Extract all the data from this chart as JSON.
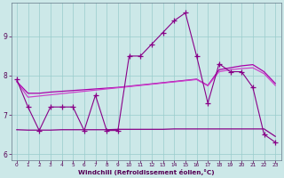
{
  "x": [
    0,
    1,
    2,
    3,
    4,
    5,
    6,
    7,
    8,
    9,
    10,
    11,
    12,
    13,
    14,
    15,
    16,
    17,
    18,
    19,
    20,
    21,
    22,
    23
  ],
  "y_raw": [
    7.9,
    7.2,
    6.6,
    7.2,
    7.2,
    7.2,
    6.6,
    7.5,
    6.6,
    6.6,
    8.5,
    8.5,
    8.8,
    9.1,
    9.4,
    9.6,
    8.5,
    7.3,
    8.3,
    8.1,
    8.1,
    7.7,
    6.5,
    6.3
  ],
  "y_smooth_upper": [
    7.85,
    7.55,
    7.55,
    7.58,
    7.6,
    7.62,
    7.64,
    7.66,
    7.68,
    7.7,
    7.73,
    7.76,
    7.79,
    7.82,
    7.85,
    7.88,
    7.91,
    7.75,
    8.15,
    8.2,
    8.25,
    8.28,
    8.1,
    7.8
  ],
  "y_smooth_mid": [
    7.85,
    7.45,
    7.48,
    7.51,
    7.54,
    7.57,
    7.6,
    7.63,
    7.66,
    7.69,
    7.72,
    7.75,
    7.78,
    7.81,
    7.84,
    7.87,
    7.9,
    7.74,
    8.1,
    8.15,
    8.18,
    8.2,
    8.05,
    7.75
  ],
  "y_smooth_lower": [
    6.62,
    6.61,
    6.61,
    6.61,
    6.62,
    6.62,
    6.62,
    6.62,
    6.62,
    6.63,
    6.63,
    6.63,
    6.63,
    6.63,
    6.64,
    6.64,
    6.64,
    6.64,
    6.64,
    6.64,
    6.64,
    6.64,
    6.64,
    6.45
  ],
  "bg_color": "#cce8e8",
  "line_color_raw": "#880088",
  "line_color_s1": "#aa00aa",
  "line_color_s2": "#cc44cc",
  "line_color_s3": "#880088",
  "grid_color": "#99cccc",
  "xlabel": "Windchill (Refroidissement éolien,°C)",
  "xlabel_color": "#550055",
  "tick_color": "#550055",
  "spine_color": "#667788",
  "ylim": [
    5.85,
    9.85
  ],
  "xlim": [
    -0.5,
    23.5
  ],
  "yticks": [
    6,
    7,
    8,
    9
  ],
  "xticks": [
    0,
    1,
    2,
    3,
    4,
    5,
    6,
    7,
    8,
    9,
    10,
    11,
    12,
    13,
    14,
    15,
    16,
    17,
    18,
    19,
    20,
    21,
    22,
    23
  ]
}
